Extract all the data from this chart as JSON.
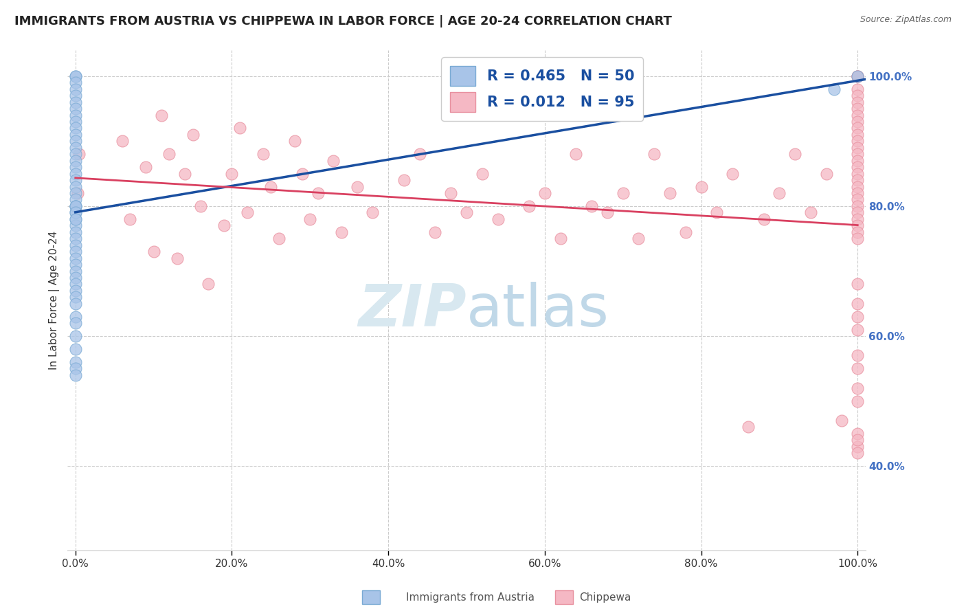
{
  "title": "IMMIGRANTS FROM AUSTRIA VS CHIPPEWA IN LABOR FORCE | AGE 20-24 CORRELATION CHART",
  "source": "Source: ZipAtlas.com",
  "ylabel": "In Labor Force | Age 20-24",
  "xlim": [
    -0.01,
    1.01
  ],
  "ylim": [
    0.27,
    1.04
  ],
  "x_tick_vals": [
    0.0,
    0.2,
    0.4,
    0.6,
    0.8,
    1.0
  ],
  "x_tick_labels": [
    "0.0%",
    "20.0%",
    "40.0%",
    "60.0%",
    "80.0%",
    "100.0%"
  ],
  "y_tick_vals_right": [
    0.4,
    0.6,
    0.8,
    1.0
  ],
  "y_tick_labels_right": [
    "40.0%",
    "60.0%",
    "80.0%",
    "100.0%"
  ],
  "legend_labels": [
    "Immigrants from Austria",
    "Chippewa"
  ],
  "legend_R": [
    0.465,
    0.012
  ],
  "legend_N": [
    50,
    95
  ],
  "austria_color": "#a8c4e8",
  "austria_edge_color": "#7aaad4",
  "chippewa_color": "#f5b8c4",
  "chippewa_edge_color": "#e8909f",
  "austria_line_color": "#1a4fa0",
  "chippewa_line_color": "#d94060",
  "watermark_color": "#d8e8f0",
  "background_color": "#ffffff",
  "grid_color": "#cccccc",
  "austria_x": [
    0.0,
    0.0,
    0.0,
    0.0,
    0.0,
    0.0,
    0.0,
    0.0,
    0.0,
    0.0,
    0.0,
    0.0,
    0.0,
    0.0,
    0.0,
    0.0,
    0.0,
    0.0,
    0.0,
    0.0,
    0.0,
    0.0,
    0.0,
    0.0,
    0.0,
    0.0,
    0.0,
    0.0,
    0.0,
    0.0,
    0.0,
    0.0,
    0.0,
    0.0,
    0.0,
    0.0,
    0.0,
    0.0,
    0.0,
    0.0,
    0.0,
    0.0,
    0.0,
    0.0,
    0.0,
    0.0,
    0.0,
    0.0,
    0.97,
    1.0
  ],
  "austria_y": [
    1.0,
    1.0,
    0.99,
    0.98,
    0.97,
    0.96,
    0.95,
    0.94,
    0.93,
    0.92,
    0.91,
    0.9,
    0.89,
    0.88,
    0.87,
    0.86,
    0.85,
    0.84,
    0.83,
    0.82,
    0.81,
    0.8,
    0.8,
    0.79,
    0.78,
    0.77,
    0.76,
    0.75,
    0.74,
    0.73,
    0.72,
    0.71,
    0.7,
    0.69,
    0.68,
    0.67,
    0.66,
    0.65,
    0.63,
    0.62,
    0.6,
    0.58,
    0.56,
    0.55,
    0.54,
    0.8,
    0.79,
    0.78,
    0.98,
    1.0
  ],
  "chippewa_x": [
    0.003,
    0.005,
    0.06,
    0.07,
    0.09,
    0.1,
    0.11,
    0.12,
    0.13,
    0.14,
    0.15,
    0.16,
    0.17,
    0.19,
    0.2,
    0.21,
    0.22,
    0.24,
    0.25,
    0.26,
    0.28,
    0.29,
    0.3,
    0.31,
    0.33,
    0.34,
    0.36,
    0.38,
    0.42,
    0.44,
    0.46,
    0.48,
    0.5,
    0.52,
    0.54,
    0.58,
    0.6,
    0.62,
    0.64,
    0.66,
    0.68,
    0.7,
    0.72,
    0.74,
    0.76,
    0.78,
    0.8,
    0.82,
    0.84,
    0.86,
    0.88,
    0.9,
    0.92,
    0.94,
    0.96,
    0.98,
    1.0,
    1.0,
    1.0,
    1.0,
    1.0,
    1.0,
    1.0,
    1.0,
    1.0,
    1.0,
    1.0,
    1.0,
    1.0,
    1.0,
    1.0,
    1.0,
    1.0,
    1.0,
    1.0,
    1.0,
    1.0,
    1.0,
    1.0,
    1.0,
    1.0,
    1.0,
    1.0,
    1.0,
    1.0,
    1.0,
    1.0,
    1.0,
    1.0,
    1.0,
    1.0,
    1.0,
    1.0,
    1.0,
    1.0
  ],
  "chippewa_y": [
    0.82,
    0.88,
    0.9,
    0.78,
    0.86,
    0.73,
    0.94,
    0.88,
    0.72,
    0.85,
    0.91,
    0.8,
    0.68,
    0.77,
    0.85,
    0.92,
    0.79,
    0.88,
    0.83,
    0.75,
    0.9,
    0.85,
    0.78,
    0.82,
    0.87,
    0.76,
    0.83,
    0.79,
    0.84,
    0.88,
    0.76,
    0.82,
    0.79,
    0.85,
    0.78,
    0.8,
    0.82,
    0.75,
    0.88,
    0.8,
    0.79,
    0.82,
    0.75,
    0.88,
    0.82,
    0.76,
    0.83,
    0.79,
    0.85,
    0.46,
    0.78,
    0.82,
    0.88,
    0.79,
    0.85,
    0.47,
    1.0,
    1.0,
    1.0,
    0.98,
    0.97,
    0.96,
    0.95,
    0.94,
    0.93,
    0.92,
    0.91,
    0.9,
    0.89,
    0.88,
    0.87,
    0.86,
    0.85,
    0.84,
    0.83,
    0.82,
    0.81,
    0.8,
    0.79,
    0.78,
    0.77,
    0.76,
    0.75,
    0.65,
    0.63,
    0.61,
    0.52,
    0.5,
    0.43,
    0.42,
    0.55,
    0.57,
    0.45,
    0.68,
    0.44
  ]
}
